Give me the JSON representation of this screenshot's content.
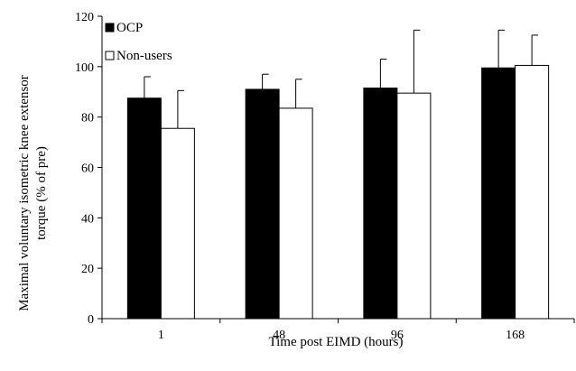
{
  "chart_data": {
    "type": "bar",
    "categories": [
      "1",
      "48",
      "96",
      "168"
    ],
    "series": [
      {
        "name": "OCP",
        "values": [
          87.5,
          91,
          91.5,
          99.5
        ],
        "error_upper": [
          96,
          97,
          103,
          114.5
        ],
        "fill": "#000000"
      },
      {
        "name": "Non-users",
        "values": [
          75.5,
          83.5,
          89.5,
          100.5
        ],
        "error_upper": [
          90.5,
          95,
          114.5,
          112.5
        ],
        "fill": "#ffffff"
      }
    ],
    "ylim": [
      0,
      120
    ],
    "yticks": [
      0,
      20,
      40,
      60,
      80,
      100,
      120
    ],
    "xlabel": "Time post EIMD (hours)",
    "ylabel_lines": [
      "Maximal voluntary isometric knee extensor",
      "torque (% of pre)"
    ],
    "legend_position": "top-left",
    "grid": false
  }
}
